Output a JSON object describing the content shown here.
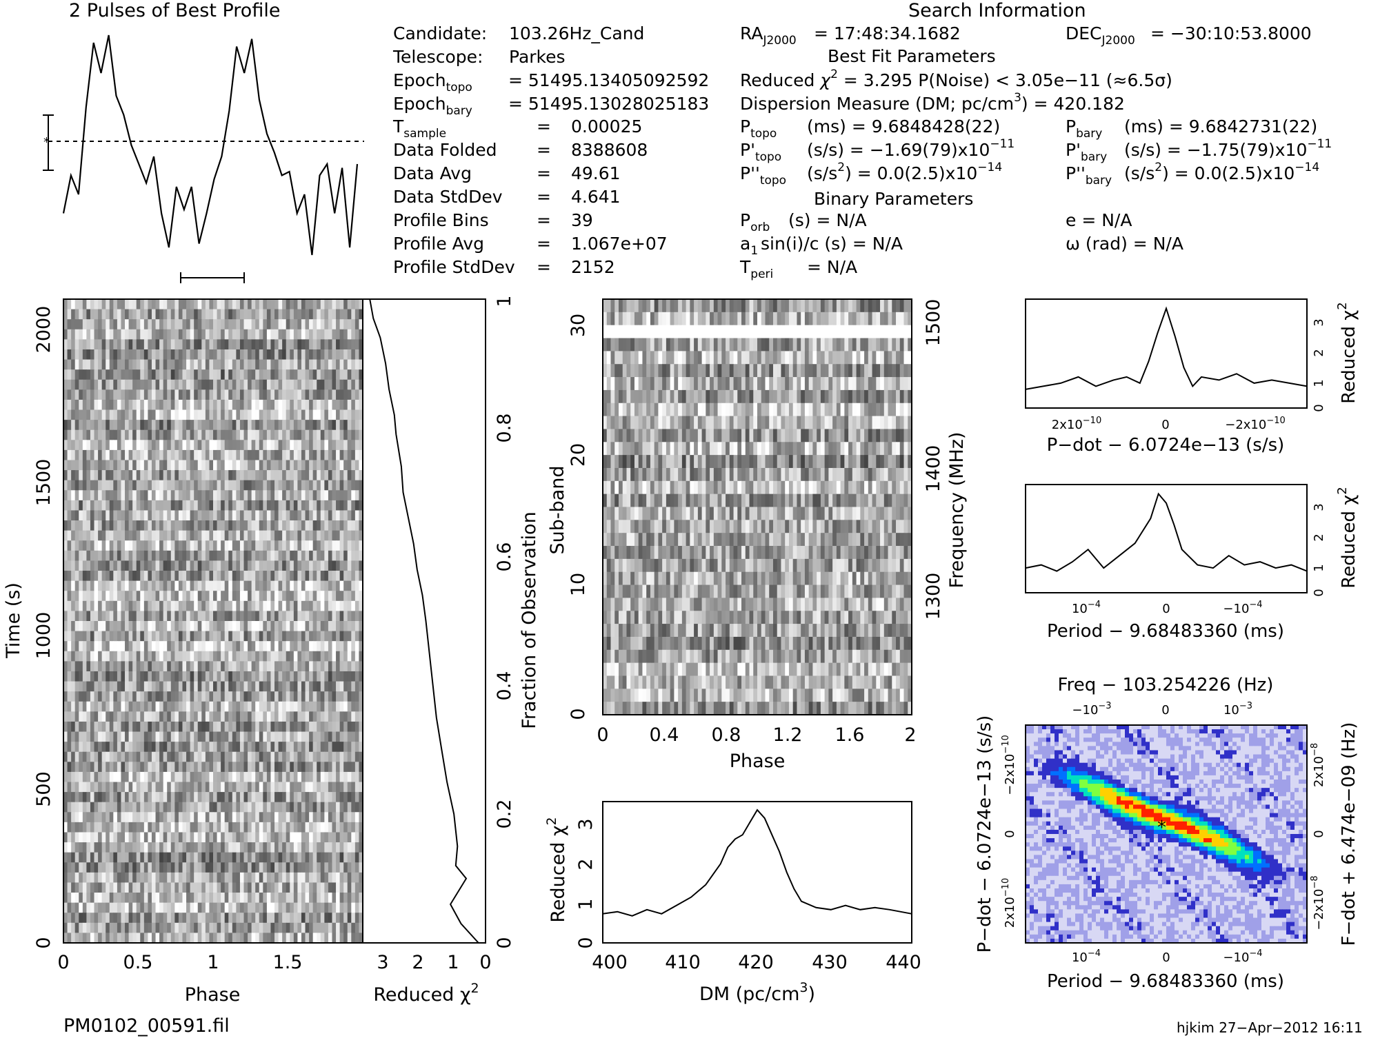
{
  "header": {
    "profile_title": "2 Pulses of Best Profile",
    "search_title": "Search Information",
    "best_fit_title": "Best Fit Parameters",
    "binary_title": "Binary Parameters",
    "filename": "PM0102_00591.fil",
    "footer": "hjkim 27−Apr−2012 16:11"
  },
  "info_left": [
    {
      "label": "Candidate:",
      "value": "103.26Hz_Cand"
    },
    {
      "label": "Telescope:",
      "value": "Parkes"
    },
    {
      "label": "Epoch",
      "sub": "topo",
      "value": "= 51495.13405092592"
    },
    {
      "label": "Epoch",
      "sub": "bary",
      "value": "= 51495.13028025183"
    },
    {
      "label": "T",
      "sub": "sample",
      "eq": "=",
      "value": "0.00025"
    },
    {
      "label": "Data Folded",
      "eq": "=",
      "value": "8388608"
    },
    {
      "label": "Data Avg",
      "eq": "=",
      "value": "49.61"
    },
    {
      "label": "Data StdDev",
      "eq": "=",
      "value": "4.641"
    },
    {
      "label": "Profile Bins",
      "eq": "=",
      "value": "39"
    },
    {
      "label": "Profile Avg",
      "eq": "=",
      "value": "1.067e+07"
    },
    {
      "label": "Profile StdDev",
      "eq": "=",
      "value": "2152"
    }
  ],
  "info_right": {
    "ra": {
      "label": "RA",
      "sub": "J2000",
      "value": "= 17:48:34.1682"
    },
    "dec": {
      "label": "DEC",
      "sub": "J2000",
      "value": "= −30:10:53.8000"
    },
    "redchi": {
      "a": "Reduced ",
      "b": "χ",
      "c": "2",
      "d": " = 3.295    P(Noise) < 3.05e−11    (≈6.5σ)"
    },
    "dm": {
      "a": "Dispersion Measure (DM; pc/cm",
      "b": "3",
      "c": ") = 420.182"
    },
    "ptopo": {
      "label": "P",
      "sub": "topo",
      "value": "(ms)  =  9.6848428(22)"
    },
    "pbary": {
      "label": "P",
      "sub": "bary",
      "value": "(ms)  =  9.6842731(22)"
    },
    "pdtopo": {
      "label": "P'",
      "sub": "topo",
      "value": "(s/s) = −1.69(79)x10",
      "exp": "−11"
    },
    "pdbary": {
      "label": "P'",
      "sub": "bary",
      "value": "(s/s) = −1.75(79)x10",
      "exp": "−11"
    },
    "pddtopo": {
      "label": "P''",
      "sub": "topo",
      "value": "(s/s",
      "mid": "2",
      "value2": ") = 0.0(2.5)x10",
      "exp": "−14"
    },
    "pddbary": {
      "label": "P''",
      "sub": "bary",
      "value": "(s/s",
      "mid": "2",
      "value2": ") = 0.0(2.5)x10",
      "exp": "−14"
    },
    "porb": {
      "label": "P",
      "sub": "orb",
      "value": "(s) = N/A"
    },
    "a1": {
      "label": "a",
      "sub": "1",
      "value": "sin(i)/c (s) = N/A"
    },
    "tperi": {
      "label": "T",
      "sub": "peri",
      "value": "= N/A"
    },
    "ecc": "e = N/A",
    "omega": "ω (rad) = N/A"
  },
  "colors": {
    "ink": "#000000",
    "white": "#ffffff"
  },
  "chart_data": [
    {
      "id": "profile",
      "type": "line",
      "title": "2 Pulses of Best Profile",
      "x": [
        0,
        0.051,
        0.103,
        0.154,
        0.205,
        0.256,
        0.308,
        0.359,
        0.41,
        0.462,
        0.513,
        0.564,
        0.615,
        0.667,
        0.718,
        0.769,
        0.821,
        0.872,
        0.923,
        0.974,
        1.026,
        1.077,
        1.128,
        1.179,
        1.231,
        1.282,
        1.333,
        1.385,
        1.436,
        1.487,
        1.538,
        1.59,
        1.641,
        1.692,
        1.744,
        1.795,
        1.846,
        1.897,
        1.949,
        2.0
      ],
      "values": [
        -0.95,
        -0.45,
        -0.7,
        0.45,
        1.3,
        0.9,
        1.4,
        0.6,
        0.35,
        -0.05,
        -0.3,
        -0.55,
        -0.2,
        -0.95,
        -1.4,
        -0.6,
        -0.9,
        -0.6,
        -1.35,
        -0.95,
        -0.5,
        -0.2,
        0.4,
        1.25,
        0.9,
        1.35,
        0.55,
        0.1,
        -0.15,
        -0.45,
        -0.4,
        -0.95,
        -0.7,
        -1.5,
        -0.45,
        -0.3,
        -0.95,
        -0.35,
        -1.4,
        -0.3
      ],
      "mean_line": 0
    },
    {
      "id": "time_phase",
      "type": "heatmap",
      "xlabel": "Phase",
      "ylabel": "Time (s)",
      "xlim": [
        0,
        2
      ],
      "ylim": [
        0,
        2097
      ],
      "xticks": [
        "0",
        "0.5",
        "1",
        "1.5"
      ],
      "yticks": [
        "0",
        "500",
        "1000",
        "1500",
        "2000"
      ],
      "rows": 64,
      "cols": 78
    },
    {
      "id": "time_chi2",
      "type": "line",
      "xlabel": "Reduced χ",
      "xlabel_sup": "2",
      "ylabel_right": "Fraction of Observation",
      "xlim": [
        3.5,
        0
      ],
      "ylim": [
        0,
        1
      ],
      "xticks": [
        "3",
        "2",
        "1",
        "0"
      ],
      "yticks_right": [
        "0",
        "0.2",
        "0.4",
        "0.6",
        "0.8",
        "1"
      ],
      "x": [
        3.3,
        3.2,
        3.0,
        2.85,
        2.75,
        2.6,
        2.55,
        2.4,
        2.35,
        2.2,
        2.05,
        1.95,
        1.8,
        1.7,
        1.6,
        1.5,
        1.4,
        1.25,
        1.1,
        0.9,
        0.8,
        0.85,
        0.55,
        1.0,
        0.7,
        0.2
      ],
      "y": [
        1.0,
        0.97,
        0.94,
        0.9,
        0.86,
        0.82,
        0.79,
        0.74,
        0.7,
        0.66,
        0.62,
        0.58,
        0.54,
        0.5,
        0.45,
        0.4,
        0.35,
        0.3,
        0.25,
        0.2,
        0.15,
        0.12,
        0.1,
        0.06,
        0.03,
        0.0
      ]
    },
    {
      "id": "subband_phase",
      "type": "heatmap",
      "xlabel": "Phase",
      "ylabel": "Sub-band",
      "ylabel_right": "Frequency (MHz)",
      "xlim": [
        0,
        2
      ],
      "ylim": [
        0,
        32
      ],
      "xticks": [
        "0",
        "0.4",
        "0.8",
        "1.2",
        "1.6",
        "2"
      ],
      "yticks": [
        "0",
        "10",
        "20",
        "30"
      ],
      "yticks_right": [
        "1300",
        "1400",
        "1500"
      ],
      "rows": 32,
      "cols": 78,
      "blank_row": 29
    },
    {
      "id": "dm_chi2",
      "type": "line",
      "xlabel": "DM (pc/cm",
      "xlabel_sup": "3",
      "xlabel_end": ")",
      "ylabel": "Reduced χ",
      "ylabel_sup": "2",
      "xlim": [
        399,
        441
      ],
      "ylim": [
        0,
        3.4
      ],
      "xticks": [
        "400",
        "410",
        "420",
        "430",
        "440"
      ],
      "yticks": [
        "0",
        "1",
        "2",
        "3"
      ],
      "x": [
        399,
        401,
        403,
        405,
        407,
        409,
        411,
        413,
        415,
        416,
        417,
        418,
        419,
        420,
        421,
        422,
        423,
        424,
        425,
        426,
        428,
        430,
        432,
        434,
        436,
        438,
        441
      ],
      "values": [
        0.7,
        0.75,
        0.65,
        0.8,
        0.7,
        0.9,
        1.1,
        1.4,
        1.9,
        2.3,
        2.5,
        2.6,
        2.9,
        3.2,
        3.0,
        2.6,
        2.2,
        1.7,
        1.3,
        1.0,
        0.85,
        0.8,
        0.9,
        0.8,
        0.85,
        0.8,
        0.7
      ]
    },
    {
      "id": "pdot_chi2",
      "type": "line",
      "xlabel": "P−dot − 6.0724e−13 (s/s)",
      "ylabel_right": "Reduced χ",
      "ylabel_sup": "2",
      "xlim": [
        3.2e-10,
        -3.2e-10
      ],
      "ylim": [
        0,
        3.5
      ],
      "xticks": [
        "2x10",
        "0",
        "−2x10"
      ],
      "xtick_exp": "−10",
      "yticks_right": [
        "0",
        "1",
        "2",
        "3"
      ],
      "x": [
        3.2,
        2.8,
        2.4,
        2.0,
        1.6,
        1.2,
        0.9,
        0.6,
        0.4,
        0.2,
        0.0,
        -0.2,
        -0.4,
        -0.6,
        -0.8,
        -1.2,
        -1.6,
        -2.0,
        -2.4,
        -2.8,
        -3.2
      ],
      "values": [
        0.6,
        0.7,
        0.8,
        1.0,
        0.7,
        0.9,
        1.0,
        0.8,
        1.5,
        2.4,
        3.2,
        2.3,
        1.3,
        0.7,
        1.0,
        0.9,
        1.1,
        0.8,
        0.9,
        0.8,
        0.7
      ]
    },
    {
      "id": "period_chi2",
      "type": "line",
      "xlabel": "Period − 9.68483360 (ms)",
      "ylabel_right": "Reduced χ",
      "ylabel_sup": "2",
      "xlim": [
        0.00018,
        -0.00018
      ],
      "ylim": [
        0,
        3.5
      ],
      "xticks": [
        "10",
        "0",
        "−10"
      ],
      "xtick_exp": "−4",
      "yticks_right": [
        "0",
        "1",
        "2",
        "3"
      ],
      "x": [
        1.8,
        1.6,
        1.4,
        1.2,
        1.0,
        0.8,
        0.6,
        0.4,
        0.2,
        0.1,
        0.0,
        -0.1,
        -0.2,
        -0.4,
        -0.6,
        -0.8,
        -1.0,
        -1.2,
        -1.4,
        -1.6,
        -1.8
      ],
      "values": [
        0.8,
        0.9,
        0.7,
        1.0,
        1.4,
        0.8,
        1.2,
        1.6,
        2.4,
        3.2,
        2.9,
        2.2,
        1.4,
        0.9,
        0.8,
        1.2,
        0.9,
        1.0,
        0.8,
        0.9,
        0.7
      ]
    },
    {
      "id": "p_pdot_plane",
      "type": "heatmap",
      "title": "Freq − 103.254226 (Hz)",
      "xlabel": "Period − 9.68483360 (ms)",
      "ylabel": "P−dot − 6.0724e−13 (s/s)",
      "ylabel_right": "F−dot + 6.474e−09 (Hz)",
      "xticks": [
        "10",
        "0",
        "−10"
      ],
      "xtick_exp": "−4",
      "top_ticks": [
        "−10",
        "0",
        "10"
      ],
      "top_tick_exp": "−3",
      "left_ticks": [
        "−2x10",
        "0",
        "2x10"
      ],
      "left_tick_exp": "−10",
      "right_ticks": [
        "2x10",
        "0",
        "−2x10"
      ],
      "right_tick_exp": "−8"
    }
  ]
}
